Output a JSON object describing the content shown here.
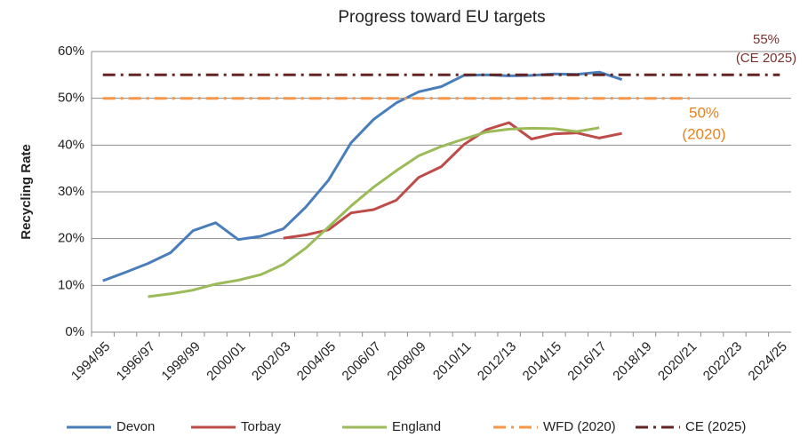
{
  "chart_data": {
    "type": "line",
    "title": "Progress toward EU targets",
    "y_label": "Recycling Rate",
    "categories": [
      "1994/95",
      null,
      "1996/97",
      null,
      "1998/99",
      null,
      "2000/01",
      null,
      "2002/03",
      null,
      "2004/05",
      null,
      "2006/07",
      null,
      "2008/09",
      null,
      "2010/11",
      null,
      "2012/13",
      null,
      "2014/15",
      null,
      "2016/17",
      null,
      "2018/19",
      null,
      "2020/21",
      null,
      "2022/23",
      null,
      "2024/25"
    ],
    "series": [
      {
        "name": "Devon",
        "color": "#4a7ebb",
        "dash": "solid",
        "values": [
          11,
          12.8,
          14.7,
          17,
          21.7,
          23.4,
          19.8,
          20.5,
          22.1,
          26.8,
          32.5,
          40.5,
          45.5,
          49,
          51.4,
          52.5,
          54.9,
          55,
          54.8,
          54.9,
          55.2,
          55.1,
          55.6,
          54,
          null,
          null,
          null,
          null,
          null,
          null,
          null
        ]
      },
      {
        "name": "Torbay",
        "color": "#be4b48",
        "dash": "solid",
        "values": [
          null,
          null,
          null,
          null,
          null,
          null,
          null,
          null,
          20.1,
          20.8,
          21.9,
          25.5,
          26.2,
          28.2,
          33.1,
          35.4,
          40.1,
          43.3,
          44.8,
          41.3,
          42.4,
          42.6,
          41.5,
          42.5,
          null,
          null,
          null,
          null,
          null,
          null,
          null
        ]
      },
      {
        "name": "England",
        "color": "#9bbb59",
        "dash": "solid",
        "values": [
          null,
          null,
          7.6,
          8.2,
          9,
          10.3,
          11.1,
          12.3,
          14.5,
          18,
          22.5,
          27,
          31,
          34.5,
          37.7,
          39.7,
          41.3,
          42.8,
          43.4,
          43.6,
          43.5,
          42.9,
          43.7,
          null,
          null,
          null,
          null,
          null,
          null,
          null,
          null
        ]
      },
      {
        "name": "WFD (2020)",
        "color": "#f79646",
        "dash": "dash-dot",
        "values": [
          50,
          50,
          50,
          50,
          50,
          50,
          50,
          50,
          50,
          50,
          50,
          50,
          50,
          50,
          50,
          50,
          50,
          50,
          50,
          50,
          50,
          50,
          50,
          50,
          50,
          50,
          50,
          null,
          null,
          null,
          null
        ]
      },
      {
        "name": "CE (2025)",
        "color": "#632523",
        "dash": "dash-dot",
        "values": [
          55,
          55,
          55,
          55,
          55,
          55,
          55,
          55,
          55,
          55,
          55,
          55,
          55,
          55,
          55,
          55,
          55,
          55,
          55,
          55,
          55,
          55,
          55,
          55,
          55,
          55,
          55,
          55,
          55,
          55,
          55
        ]
      }
    ],
    "annotations": [
      "55%",
      "(CE 2025)",
      "50%",
      "(2020)"
    ],
    "ylim": [
      0,
      60
    ],
    "yticks": [
      {
        "value": 0,
        "label": "0%"
      },
      {
        "value": 10,
        "label": "10%"
      },
      {
        "value": 20,
        "label": "20%"
      },
      {
        "value": 30,
        "label": "30%"
      },
      {
        "value": 40,
        "label": "40%"
      },
      {
        "value": 50,
        "label": "50%"
      },
      {
        "value": 60,
        "label": "60%"
      }
    ],
    "grid": true,
    "legend": "bottom"
  }
}
